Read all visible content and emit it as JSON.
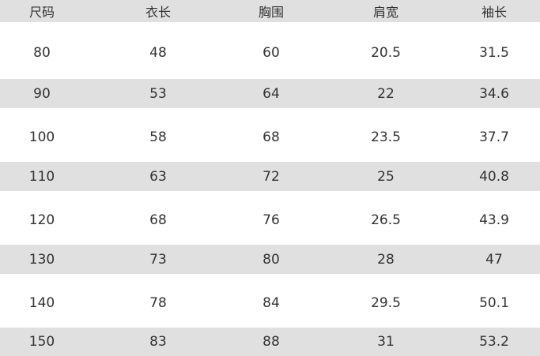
{
  "table": {
    "headers": [
      "尺码",
      "衣长",
      "胸围",
      "肩宽",
      "袖长"
    ],
    "rows": [
      [
        "80",
        "48",
        "60",
        "20.5",
        "31.5"
      ],
      [
        "90",
        "53",
        "64",
        "22",
        "34.6"
      ],
      [
        "100",
        "58",
        "68",
        "23.5",
        "37.7"
      ],
      [
        "110",
        "63",
        "72",
        "25",
        "40.8"
      ],
      [
        "120",
        "68",
        "76",
        "26.5",
        "43.9"
      ],
      [
        "130",
        "73",
        "80",
        "28",
        "47"
      ],
      [
        "140",
        "78",
        "84",
        "29.5",
        "50.1"
      ],
      [
        "150",
        "83",
        "88",
        "31",
        "53.2"
      ]
    ]
  },
  "colors": {
    "stripe": "#e0e0e0",
    "text": "#333333"
  }
}
